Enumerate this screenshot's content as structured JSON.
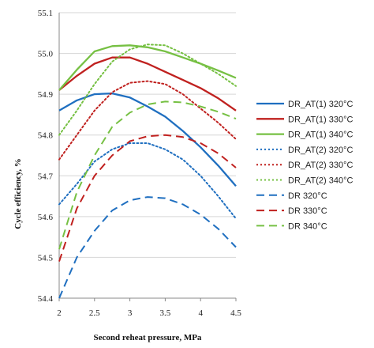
{
  "chart_data": {
    "type": "line",
    "title": "",
    "xlabel": "Second reheat pressure, MPa",
    "ylabel": "Cycle efficiency, %",
    "xlim": [
      2,
      4.5
    ],
    "ylim": [
      54.4,
      55.1
    ],
    "xticks": [
      "2",
      "2.5",
      "3",
      "3.5",
      "4",
      "4.5"
    ],
    "yticks": [
      "54.4",
      "54.5",
      "54.6",
      "54.7",
      "54.8",
      "54.9",
      "55.0",
      "55.1"
    ],
    "grid": "horizontal",
    "legend_position": "right",
    "series": [
      {
        "name": "DR_AT(1) 320°C",
        "color": "#1f6fc0",
        "style": "solid",
        "x": [
          2,
          2.25,
          2.5,
          2.75,
          3,
          3.25,
          3.5,
          3.75,
          4,
          4.25,
          4.5
        ],
        "y": [
          54.86,
          54.885,
          54.9,
          54.902,
          54.892,
          54.87,
          54.845,
          54.81,
          54.77,
          54.725,
          54.675
        ]
      },
      {
        "name": "DR_AT(1) 330°C",
        "color": "#c0211f",
        "style": "solid",
        "x": [
          2,
          2.25,
          2.5,
          2.75,
          3,
          3.25,
          3.5,
          3.75,
          4,
          4.25,
          4.5
        ],
        "y": [
          54.91,
          54.945,
          54.975,
          54.99,
          54.99,
          54.975,
          54.955,
          54.935,
          54.915,
          54.89,
          54.86
        ]
      },
      {
        "name": "DR_AT(1) 340°C",
        "color": "#76c043",
        "style": "solid",
        "x": [
          2,
          2.25,
          2.5,
          2.75,
          3,
          3.25,
          3.5,
          3.75,
          4,
          4.25,
          4.5
        ],
        "y": [
          54.91,
          54.96,
          55.005,
          55.018,
          55.02,
          55.015,
          55.005,
          54.99,
          54.975,
          54.958,
          54.94
        ]
      },
      {
        "name": "DR_AT(2) 320°C",
        "color": "#1f6fc0",
        "style": "dotted",
        "x": [
          2,
          2.25,
          2.5,
          2.75,
          3,
          3.25,
          3.5,
          3.75,
          4,
          4.25,
          4.5
        ],
        "y": [
          54.63,
          54.68,
          54.735,
          54.765,
          54.78,
          54.78,
          54.765,
          54.74,
          54.7,
          54.65,
          54.595
        ]
      },
      {
        "name": "DR_AT(2) 330°C",
        "color": "#c0211f",
        "style": "dotted",
        "x": [
          2,
          2.25,
          2.5,
          2.75,
          3,
          3.25,
          3.5,
          3.75,
          4,
          4.25,
          4.5
        ],
        "y": [
          54.74,
          54.8,
          54.86,
          54.905,
          54.928,
          54.932,
          54.925,
          54.9,
          54.865,
          54.83,
          54.79
        ]
      },
      {
        "name": "DR_AT(2) 340°C",
        "color": "#76c043",
        "style": "dotted",
        "x": [
          2,
          2.25,
          2.5,
          2.75,
          3,
          3.25,
          3.5,
          3.75,
          4,
          4.25,
          4.5
        ],
        "y": [
          54.8,
          54.86,
          54.925,
          54.98,
          55.01,
          55.022,
          55.02,
          55.0,
          54.975,
          54.95,
          54.92
        ]
      },
      {
        "name": "DR 320°C",
        "color": "#1f6fc0",
        "style": "dashed",
        "x": [
          2,
          2.25,
          2.5,
          2.75,
          3,
          3.25,
          3.5,
          3.75,
          4,
          4.25,
          4.5
        ],
        "y": [
          54.4,
          54.5,
          54.565,
          54.615,
          54.64,
          54.648,
          54.645,
          54.63,
          54.605,
          54.57,
          54.525
        ]
      },
      {
        "name": "DR 330°C",
        "color": "#c0211f",
        "style": "dashed",
        "x": [
          2,
          2.25,
          2.5,
          2.75,
          3,
          3.25,
          3.5,
          3.75,
          4,
          4.25,
          4.5
        ],
        "y": [
          54.49,
          54.62,
          54.7,
          54.75,
          54.785,
          54.797,
          54.8,
          54.795,
          54.78,
          54.755,
          54.72
        ]
      },
      {
        "name": "DR 340°C",
        "color": "#76c043",
        "style": "dashed",
        "x": [
          2,
          2.25,
          2.5,
          2.75,
          3,
          3.25,
          3.5,
          3.75,
          4,
          4.25,
          4.5
        ],
        "y": [
          54.52,
          54.66,
          54.75,
          54.82,
          54.855,
          54.875,
          54.882,
          54.88,
          54.87,
          54.857,
          54.84
        ]
      }
    ]
  }
}
